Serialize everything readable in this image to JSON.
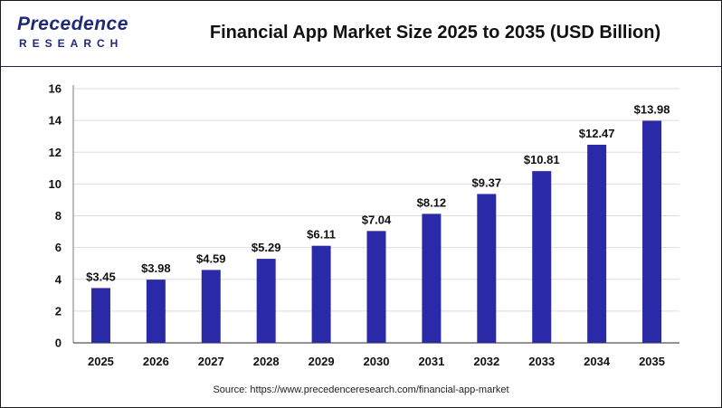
{
  "header": {
    "logo_top": "Precedence",
    "logo_bottom": "RESEARCH"
  },
  "chart_data": {
    "type": "bar",
    "title": "Financial App Market Size 2025 to 2035 (USD Billion)",
    "categories": [
      "2025",
      "2026",
      "2027",
      "2028",
      "2029",
      "2030",
      "2031",
      "2032",
      "2033",
      "2034",
      "2035"
    ],
    "values": [
      3.45,
      3.98,
      4.59,
      5.29,
      6.11,
      7.04,
      8.12,
      9.37,
      10.81,
      12.47,
      13.98
    ],
    "data_labels": [
      "$3.45",
      "$3.98",
      "$4.59",
      "$5.29",
      "$6.11",
      "$7.04",
      "$8.12",
      "$9.37",
      "$10.81",
      "$12.47",
      "$13.98"
    ],
    "ylim": [
      0,
      16
    ],
    "yticks": [
      0,
      2,
      4,
      6,
      8,
      10,
      12,
      14,
      16
    ],
    "grid": true,
    "bar_color": "#2a2aa8",
    "xlabel": "",
    "ylabel": ""
  },
  "footer": {
    "source": "Source: https://www.precedenceresearch.com/financial-app-market"
  }
}
